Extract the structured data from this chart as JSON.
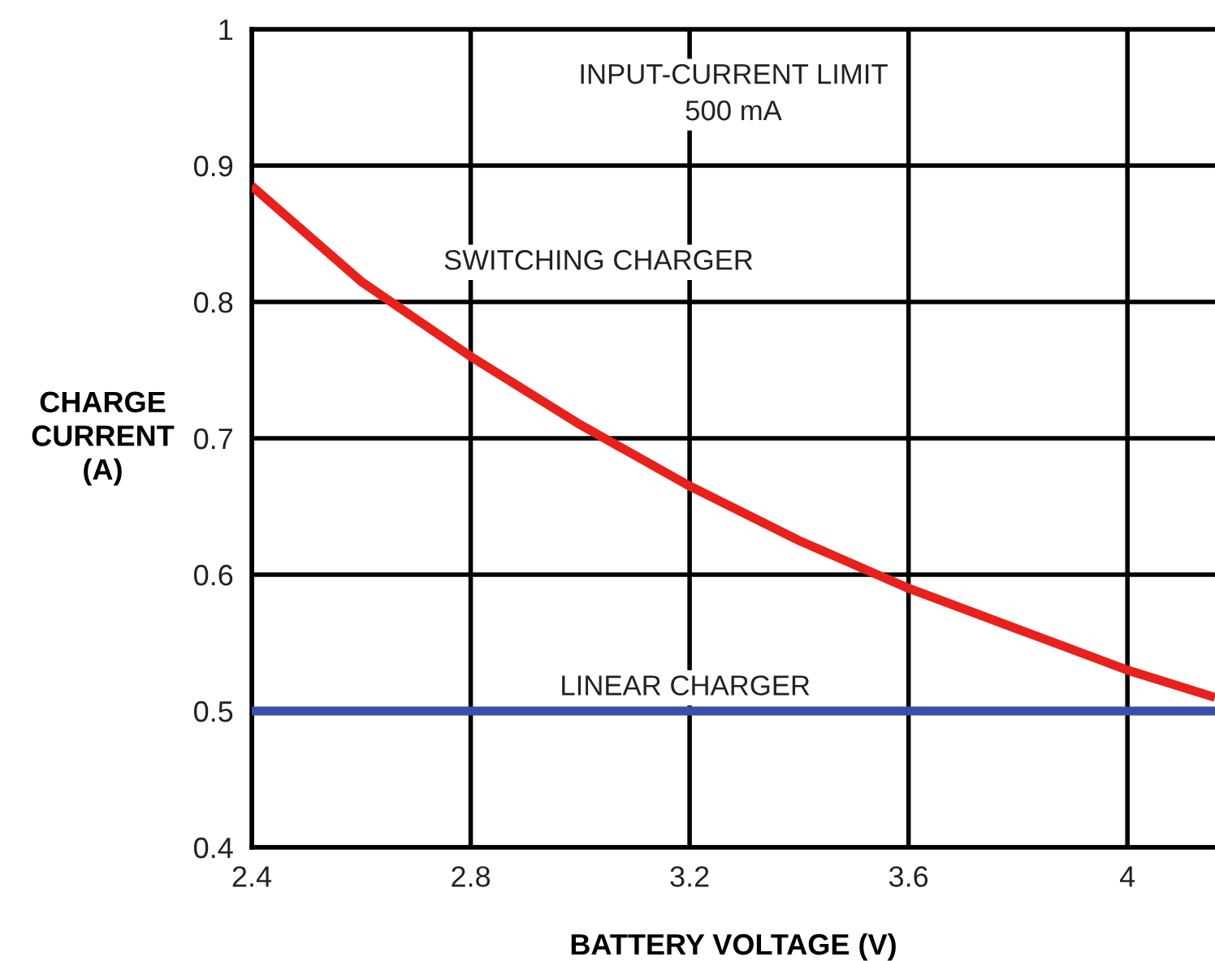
{
  "chart_data": {
    "type": "line",
    "xlabel": "BATTERY VOLTAGE (V)",
    "ylabel": "CHARGE\nCURRENT\n(A)",
    "annotations": [
      "INPUT-CURRENT LIMIT\n500 mA"
    ],
    "series": [
      {
        "name": "SWITCHING CHARGER",
        "color": "#e8211c",
        "x": [
          2.4,
          2.6,
          2.8,
          3.0,
          3.2,
          3.4,
          3.6,
          3.8,
          4.0,
          4.16
        ],
        "values": [
          0.885,
          0.815,
          0.76,
          0.71,
          0.665,
          0.625,
          0.59,
          0.56,
          0.53,
          0.51
        ]
      },
      {
        "name": "LINEAR CHARGER",
        "color": "#3a4fa8",
        "x": [
          2.4,
          4.16
        ],
        "values": [
          0.5,
          0.5
        ]
      }
    ],
    "xlim": [
      2.4,
      4.16
    ],
    "ylim": [
      0.4,
      1
    ],
    "xticks": [
      2.4,
      2.8,
      3.2,
      3.6,
      4
    ],
    "yticks": [
      0.4,
      0.5,
      0.6,
      0.7,
      0.8,
      0.9,
      1
    ],
    "grid": true,
    "marker": "none",
    "line_style": "solid"
  }
}
